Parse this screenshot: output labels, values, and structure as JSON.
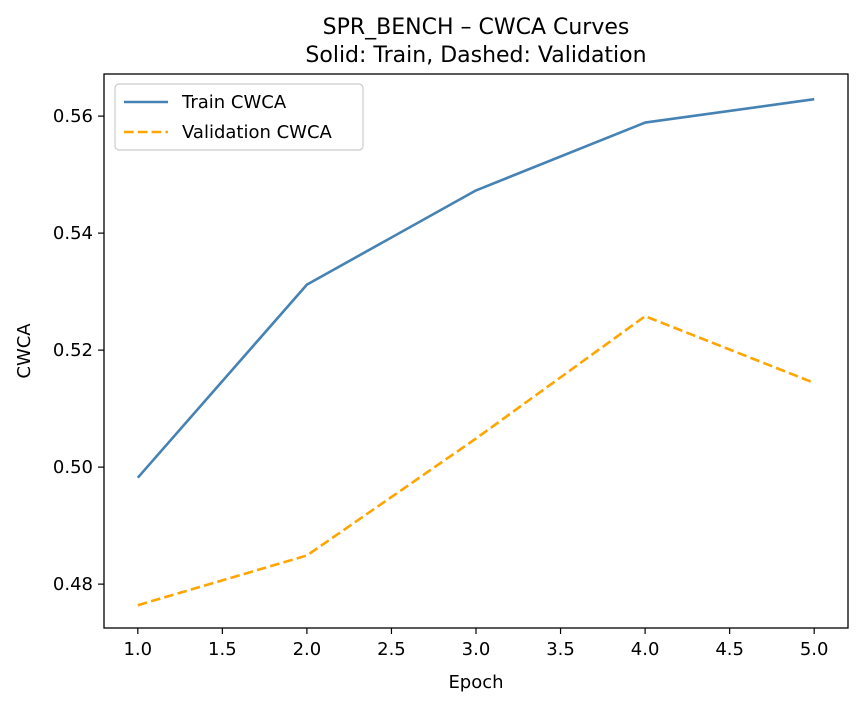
{
  "chart_data": {
    "type": "line",
    "title": "SPR_BENCH – CWCA Curves",
    "subtitle": "Solid: Train, Dashed: Validation",
    "xlabel": "Epoch",
    "ylabel": "CWCA",
    "xlim": [
      0.8,
      5.2
    ],
    "ylim": [
      0.4725,
      0.5672
    ],
    "x_ticks": [
      1.0,
      1.5,
      2.0,
      2.5,
      3.0,
      3.5,
      4.0,
      4.5,
      5.0
    ],
    "x_tick_labels": [
      "1.0",
      "1.5",
      "2.0",
      "2.5",
      "3.0",
      "3.5",
      "4.0",
      "4.5",
      "5.0"
    ],
    "y_ticks": [
      0.48,
      0.5,
      0.52,
      0.54,
      0.56
    ],
    "y_tick_labels": [
      "0.48",
      "0.50",
      "0.52",
      "0.54",
      "0.56"
    ],
    "grid": false,
    "legend_position": "top-left",
    "series": [
      {
        "name": "Train CWCA",
        "color": "#4682b4",
        "dash": "solid",
        "x": [
          1,
          2,
          3,
          4,
          5
        ],
        "y": [
          0.4982,
          0.5312,
          0.5473,
          0.5589,
          0.5629
        ]
      },
      {
        "name": "Validation CWCA",
        "color": "#ffa500",
        "dash": "dashed",
        "x": [
          1,
          2,
          3,
          4,
          5
        ],
        "y": [
          0.4764,
          0.4849,
          0.5049,
          0.5258,
          0.5144
        ]
      }
    ]
  }
}
